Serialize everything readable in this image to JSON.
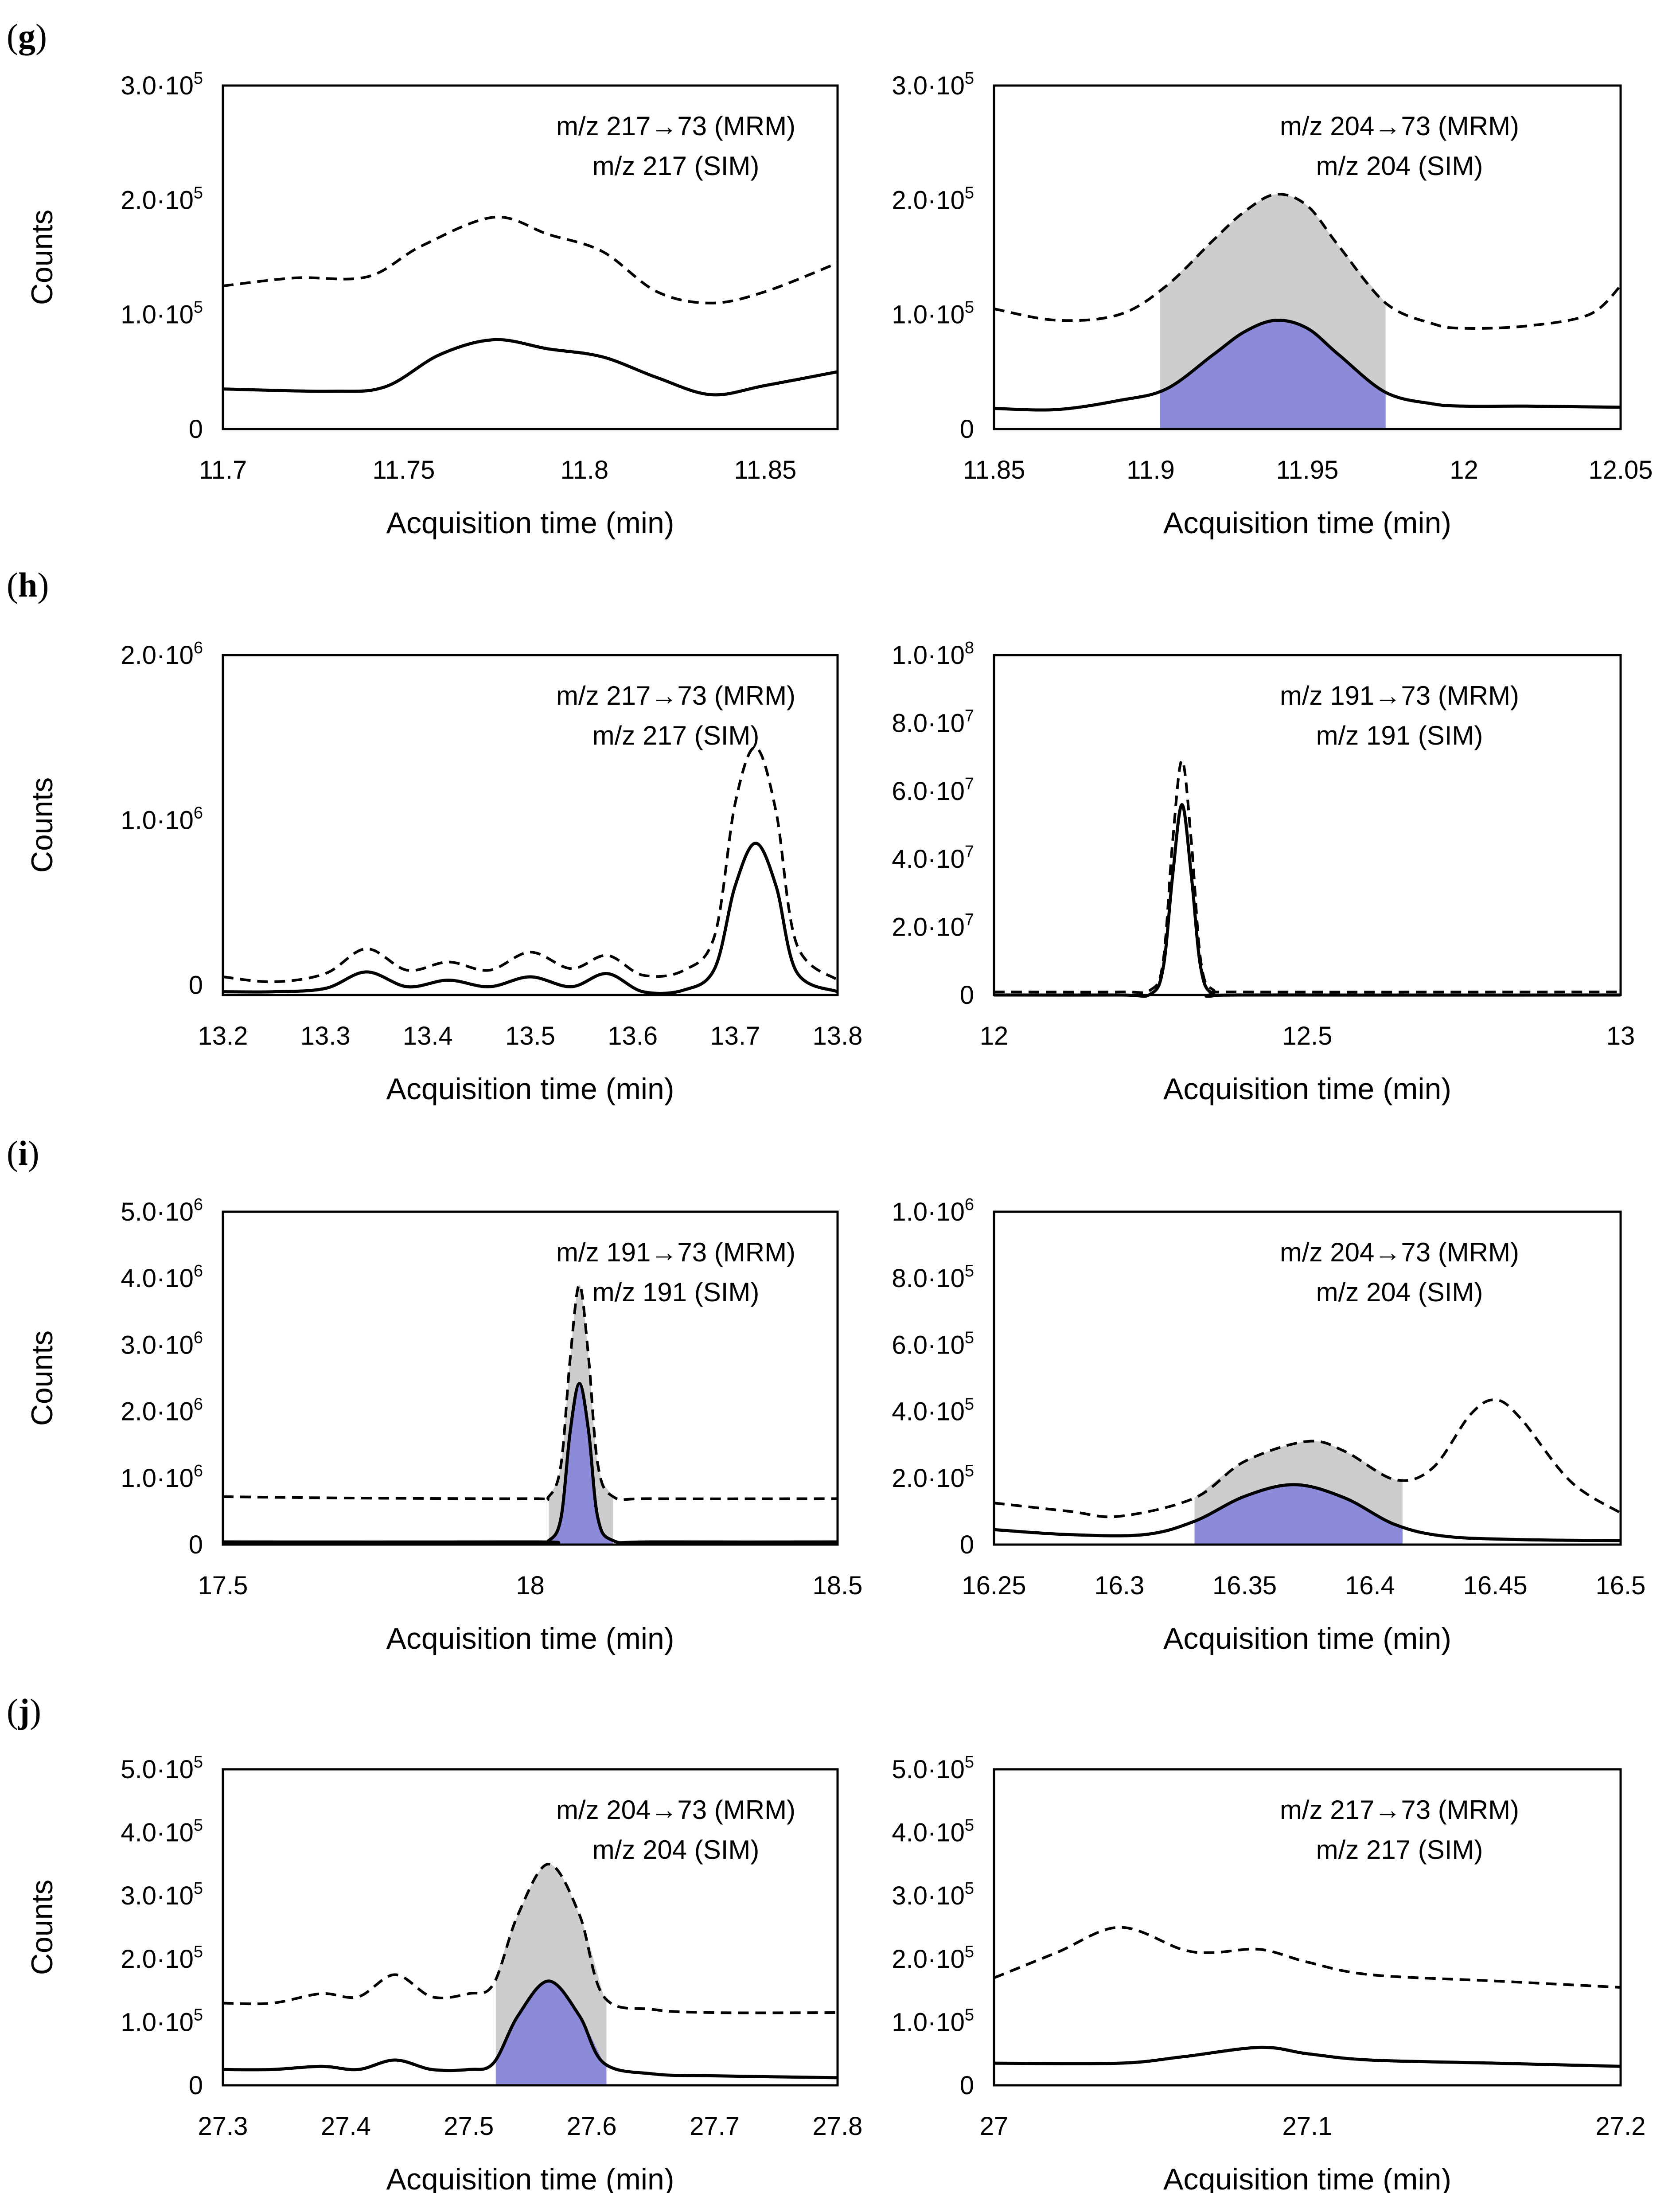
{
  "chart_data": [
    {
      "panel": "(g)",
      "type": "line",
      "title": "",
      "xlabel": "Acquisition time (min)",
      "ylabel": "Counts",
      "xlim": [
        11.7,
        11.87
      ],
      "ylim": [
        0,
        300000
      ],
      "xticks": [
        11.7,
        11.75,
        11.8,
        11.85
      ],
      "xtick_labels": [
        "11.7",
        "11.75",
        "11.8",
        "11.85"
      ],
      "yticks": [
        0,
        100000,
        200000,
        300000
      ],
      "ytick_labels": [
        [
          "0",
          ""
        ],
        [
          "1.0·10",
          "5"
        ],
        [
          "2.0·10",
          "5"
        ],
        [
          "3.0·10",
          "5"
        ]
      ],
      "legend": [
        "m/z 217→73 (MRM)",
        "m/z 217 (SIM)"
      ],
      "series": [
        {
          "name": "MRM",
          "style": "solid",
          "x": [
            11.7,
            11.73,
            11.745,
            11.76,
            11.775,
            11.79,
            11.805,
            11.82,
            11.835,
            11.85,
            11.87
          ],
          "values": [
            35000,
            33000,
            37000,
            65000,
            78000,
            70000,
            63000,
            45000,
            30000,
            38000,
            50000
          ]
        },
        {
          "name": "SIM",
          "style": "dashed",
          "x": [
            11.7,
            11.72,
            11.74,
            11.755,
            11.775,
            11.79,
            11.805,
            11.82,
            11.835,
            11.85,
            11.87
          ],
          "values": [
            125000,
            132000,
            133000,
            160000,
            185000,
            170000,
            155000,
            120000,
            110000,
            120000,
            145000
          ]
        }
      ]
    },
    {
      "panel": "",
      "type": "line",
      "title": "",
      "xlabel": "Acquisition time (min)",
      "ylabel": "",
      "xlim": [
        11.85,
        12.05
      ],
      "ylim": [
        0,
        300000
      ],
      "xticks": [
        11.85,
        11.9,
        11.95,
        12.0,
        12.05
      ],
      "xtick_labels": [
        "11.85",
        "11.9",
        "11.95",
        "12",
        "12.05"
      ],
      "yticks": [
        0,
        100000,
        200000,
        300000
      ],
      "ytick_labels": [
        [
          "0",
          ""
        ],
        [
          "1.0·10",
          "5"
        ],
        [
          "2.0·10",
          "5"
        ],
        [
          "3.0·10",
          "5"
        ]
      ],
      "legend": [
        "m/z 204→73 (MRM)",
        "m/z 204 (SIM)"
      ],
      "integration_window": [
        11.903,
        11.975
      ],
      "series": [
        {
          "name": "MRM",
          "style": "solid",
          "x": [
            11.85,
            11.87,
            11.89,
            11.905,
            11.92,
            11.93,
            11.94,
            11.95,
            11.96,
            11.975,
            11.99,
            12.0,
            12.02,
            12.05
          ],
          "values": [
            18000,
            17000,
            25000,
            35000,
            65000,
            85000,
            95000,
            88000,
            65000,
            32000,
            22000,
            20000,
            20000,
            19000
          ]
        },
        {
          "name": "SIM",
          "style": "dashed",
          "x": [
            11.85,
            11.87,
            11.89,
            11.905,
            11.92,
            11.93,
            11.94,
            11.95,
            11.96,
            11.975,
            11.99,
            12.0,
            12.02,
            12.04,
            12.05
          ],
          "values": [
            105000,
            95000,
            100000,
            125000,
            165000,
            190000,
            205000,
            195000,
            160000,
            110000,
            92000,
            88000,
            90000,
            100000,
            125000
          ]
        }
      ]
    },
    {
      "panel": "(h)",
      "type": "line",
      "title": "",
      "xlabel": "Acquisition time (min)",
      "ylabel": "Counts",
      "xlim": [
        13.2,
        13.8
      ],
      "ylim": [
        -60000,
        2000000
      ],
      "xticks": [
        13.2,
        13.3,
        13.4,
        13.5,
        13.6,
        13.7,
        13.8
      ],
      "xtick_labels": [
        "13.2",
        "13.3",
        "13.4",
        "13.5",
        "13.6",
        "13.7",
        "13.8"
      ],
      "yticks": [
        0,
        1000000,
        2000000
      ],
      "ytick_labels": [
        [
          "0",
          ""
        ],
        [
          "1.0·10",
          "6"
        ],
        [
          "2.0·10",
          "6"
        ]
      ],
      "legend": [
        "m/z 217→73 (MRM)",
        "m/z 217 (SIM)"
      ],
      "series": [
        {
          "name": "MRM",
          "style": "solid",
          "x": [
            13.2,
            13.25,
            13.3,
            13.34,
            13.38,
            13.42,
            13.46,
            13.5,
            13.54,
            13.575,
            13.61,
            13.65,
            13.68,
            13.7,
            13.72,
            13.74,
            13.76,
            13.8
          ],
          "values": [
            -40000,
            -40000,
            -20000,
            80000,
            -10000,
            30000,
            -10000,
            50000,
            -10000,
            70000,
            -40000,
            -30000,
            100000,
            600000,
            860000,
            600000,
            80000,
            -40000
          ]
        },
        {
          "name": "SIM",
          "style": "dashed",
          "x": [
            13.2,
            13.25,
            13.3,
            13.34,
            13.38,
            13.42,
            13.46,
            13.5,
            13.54,
            13.575,
            13.61,
            13.65,
            13.68,
            13.7,
            13.72,
            13.74,
            13.76,
            13.8
          ],
          "values": [
            50000,
            20000,
            70000,
            220000,
            90000,
            140000,
            90000,
            200000,
            100000,
            180000,
            60000,
            90000,
            300000,
            1100000,
            1440000,
            1050000,
            250000,
            30000
          ]
        }
      ]
    },
    {
      "panel": "",
      "type": "line",
      "title": "",
      "xlabel": "Acquisition time (min)",
      "ylabel": "",
      "xlim": [
        12.0,
        13.0
      ],
      "ylim": [
        0,
        100000000
      ],
      "xticks": [
        12.0,
        12.5,
        13.0
      ],
      "xtick_labels": [
        "12",
        "12.5",
        "13"
      ],
      "yticks": [
        0,
        20000000,
        40000000,
        60000000,
        80000000,
        100000000
      ],
      "ytick_labels": [
        [
          "0",
          ""
        ],
        [
          "2.0·10",
          "7"
        ],
        [
          "4.0·10",
          "7"
        ],
        [
          "6.0·10",
          "7"
        ],
        [
          "8.0·10",
          "7"
        ],
        [
          "1.0·10",
          "8"
        ]
      ],
      "legend": [
        "m/z 191→73 (MRM)",
        "m/z 191 (SIM)"
      ],
      "series": [
        {
          "name": "MRM",
          "style": "solid",
          "x": [
            12.0,
            12.2,
            12.25,
            12.27,
            12.285,
            12.3,
            12.315,
            12.33,
            12.35,
            12.4,
            13.0
          ],
          "values": [
            0,
            0,
            300000,
            8000000,
            35000000,
            56000000,
            35000000,
            8000000,
            300000,
            0,
            0
          ]
        },
        {
          "name": "SIM",
          "style": "dashed",
          "x": [
            12.0,
            12.2,
            12.25,
            12.27,
            12.285,
            12.3,
            12.315,
            12.33,
            12.35,
            12.4,
            13.0
          ],
          "values": [
            900000,
            900000,
            1500000,
            10000000,
            45000000,
            69000000,
            45000000,
            10000000,
            1500000,
            900000,
            900000
          ]
        }
      ]
    },
    {
      "panel": "(i)",
      "type": "line",
      "title": "",
      "xlabel": "Acquisition time (min)",
      "ylabel": "Counts",
      "xlim": [
        17.5,
        18.5
      ],
      "ylim": [
        0,
        5000000
      ],
      "xticks": [
        17.5,
        18.0,
        18.5
      ],
      "xtick_labels": [
        "17.5",
        "18",
        "18.5"
      ],
      "yticks": [
        0,
        1000000,
        2000000,
        3000000,
        4000000,
        5000000
      ],
      "ytick_labels": [
        [
          "0",
          ""
        ],
        [
          "1.0·10",
          "6"
        ],
        [
          "2.0·10",
          "6"
        ],
        [
          "3.0·10",
          "6"
        ],
        [
          "4.0·10",
          "6"
        ],
        [
          "5.0·10",
          "6"
        ]
      ],
      "legend": [
        "m/z 191→73 (MRM)",
        "m/z 191 (SIM)"
      ],
      "integration_window": [
        18.03,
        18.135
      ],
      "series": [
        {
          "name": "MRM",
          "style": "solid",
          "x": [
            17.5,
            18.0,
            18.03,
            18.05,
            18.065,
            18.08,
            18.095,
            18.11,
            18.135,
            18.2,
            18.5
          ],
          "values": [
            40000,
            40000,
            60000,
            400000,
            1700000,
            2420000,
            1700000,
            400000,
            60000,
            40000,
            40000
          ]
        },
        {
          "name": "SIM",
          "style": "dashed",
          "x": [
            17.5,
            17.7,
            18.0,
            18.03,
            18.05,
            18.065,
            18.08,
            18.095,
            18.11,
            18.135,
            18.2,
            18.5
          ],
          "values": [
            720000,
            700000,
            690000,
            720000,
            1200000,
            2800000,
            3900000,
            2800000,
            1200000,
            720000,
            690000,
            690000
          ]
        }
      ]
    },
    {
      "panel": "",
      "type": "line",
      "title": "",
      "xlabel": "Acquisition time (min)",
      "ylabel": "",
      "xlim": [
        16.25,
        16.5
      ],
      "ylim": [
        0,
        1000000
      ],
      "xticks": [
        16.25,
        16.3,
        16.35,
        16.4,
        16.45,
        16.5
      ],
      "xtick_labels": [
        "16.25",
        "16.3",
        "16.35",
        "16.4",
        "16.45",
        "16.5"
      ],
      "yticks": [
        0,
        200000,
        400000,
        600000,
        800000,
        1000000
      ],
      "ytick_labels": [
        [
          "0",
          ""
        ],
        [
          "2.0·10",
          "5"
        ],
        [
          "4.0·10",
          "5"
        ],
        [
          "6.0·10",
          "5"
        ],
        [
          "8.0·10",
          "5"
        ],
        [
          "1.0·10",
          "6"
        ]
      ],
      "legend": [
        "m/z 204→73 (MRM)",
        "m/z 204 (SIM)"
      ],
      "integration_window": [
        16.33,
        16.413
      ],
      "series": [
        {
          "name": "MRM",
          "style": "solid",
          "x": [
            16.25,
            16.28,
            16.31,
            16.33,
            16.35,
            16.37,
            16.39,
            16.41,
            16.43,
            16.46,
            16.5
          ],
          "values": [
            45000,
            30000,
            30000,
            70000,
            145000,
            180000,
            140000,
            60000,
            25000,
            15000,
            12000
          ]
        },
        {
          "name": "SIM",
          "style": "dashed",
          "x": [
            16.25,
            16.28,
            16.3,
            16.33,
            16.35,
            16.375,
            16.39,
            16.41,
            16.425,
            16.44,
            16.45,
            16.46,
            16.48,
            16.5
          ],
          "values": [
            125000,
            100000,
            85000,
            140000,
            250000,
            310000,
            280000,
            195000,
            230000,
            390000,
            435000,
            380000,
            190000,
            95000
          ]
        }
      ]
    },
    {
      "panel": "(j)",
      "type": "line",
      "title": "",
      "xlabel": "Acquisition time (min)",
      "ylabel": "Counts",
      "xlim": [
        27.3,
        27.8
      ],
      "ylim": [
        0,
        500000
      ],
      "xticks": [
        27.3,
        27.4,
        27.5,
        27.6,
        27.7,
        27.8
      ],
      "xtick_labels": [
        "27.3",
        "27.4",
        "27.5",
        "27.6",
        "27.7",
        "27.8"
      ],
      "yticks": [
        0,
        100000,
        200000,
        300000,
        400000,
        500000
      ],
      "ytick_labels": [
        [
          "0",
          ""
        ],
        [
          "1.0·10",
          "5"
        ],
        [
          "2.0·10",
          "5"
        ],
        [
          "3.0·10",
          "5"
        ],
        [
          "4.0·10",
          "5"
        ],
        [
          "5.0·10",
          "5"
        ]
      ],
      "legend": [
        "m/z 204→73 (MRM)",
        "m/z 204 (SIM)"
      ],
      "integration_window": [
        27.522,
        27.612
      ],
      "series": [
        {
          "name": "MRM",
          "style": "solid",
          "x": [
            27.3,
            27.34,
            27.38,
            27.41,
            27.44,
            27.47,
            27.5,
            27.52,
            27.54,
            27.565,
            27.59,
            27.61,
            27.65,
            27.7,
            27.8
          ],
          "values": [
            25000,
            25000,
            30000,
            25000,
            40000,
            25000,
            25000,
            35000,
            110000,
            165000,
            110000,
            35000,
            18000,
            15000,
            12000
          ]
        },
        {
          "name": "SIM",
          "style": "dashed",
          "x": [
            27.3,
            27.34,
            27.38,
            27.41,
            27.44,
            27.47,
            27.5,
            27.52,
            27.54,
            27.565,
            27.59,
            27.61,
            27.65,
            27.7,
            27.8
          ],
          "values": [
            130000,
            130000,
            145000,
            140000,
            175000,
            140000,
            145000,
            160000,
            270000,
            350000,
            270000,
            140000,
            120000,
            115000,
            115000
          ]
        }
      ]
    },
    {
      "panel": "",
      "type": "line",
      "title": "",
      "xlabel": "Acquisition time (min)",
      "ylabel": "",
      "xlim": [
        27.0,
        27.2
      ],
      "ylim": [
        0,
        500000
      ],
      "xticks": [
        27.0,
        27.1,
        27.2
      ],
      "xtick_labels": [
        "27",
        "27.1",
        "27.2"
      ],
      "yticks": [
        0,
        100000,
        200000,
        300000,
        400000,
        500000
      ],
      "ytick_labels": [
        [
          "0",
          ""
        ],
        [
          "1.0·10",
          "5"
        ],
        [
          "2.0·10",
          "5"
        ],
        [
          "3.0·10",
          "5"
        ],
        [
          "4.0·10",
          "5"
        ],
        [
          "5.0·10",
          "5"
        ]
      ],
      "legend": [
        "m/z 217→73 (MRM)",
        "m/z 217 (SIM)"
      ],
      "series": [
        {
          "name": "MRM",
          "style": "solid",
          "x": [
            27.0,
            27.04,
            27.06,
            27.085,
            27.1,
            27.12,
            27.16,
            27.2
          ],
          "values": [
            35000,
            35000,
            45000,
            60000,
            50000,
            40000,
            35000,
            30000
          ]
        },
        {
          "name": "SIM",
          "style": "dashed",
          "x": [
            27.0,
            27.02,
            27.04,
            27.06,
            27.07,
            27.085,
            27.1,
            27.12,
            27.16,
            27.2
          ],
          "values": [
            170000,
            210000,
            250000,
            215000,
            210000,
            215000,
            195000,
            175000,
            165000,
            155000
          ]
        }
      ]
    }
  ]
}
